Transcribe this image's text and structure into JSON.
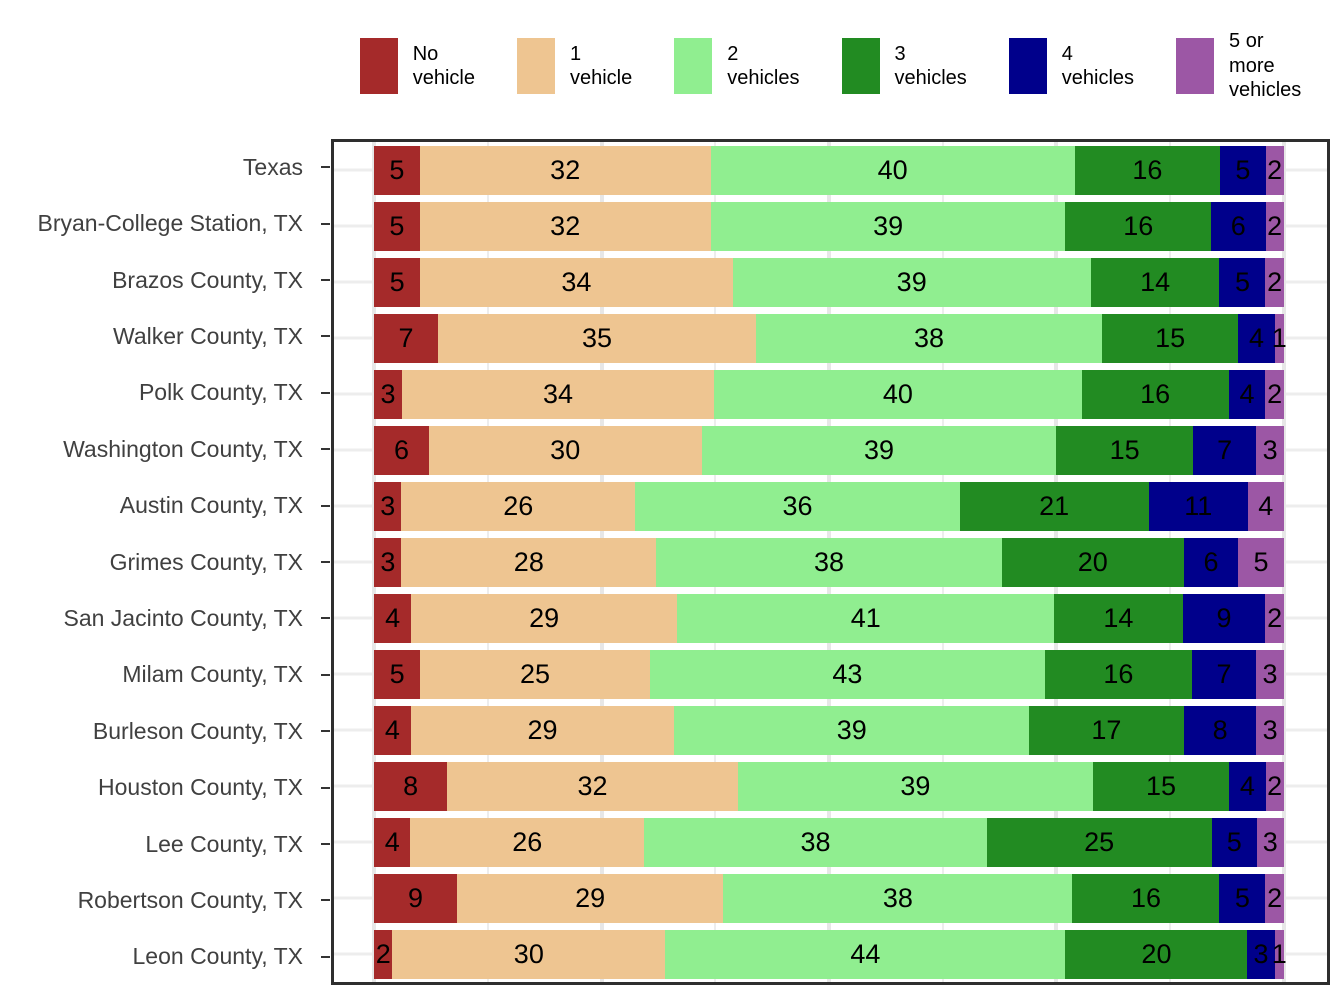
{
  "chart_data": {
    "type": "bar",
    "orientation": "horizontal-stacked",
    "unit": "percent",
    "title": "",
    "categories": [
      "Texas",
      "Bryan-College Station, TX",
      "Brazos County, TX",
      "Walker County, TX",
      "Polk County, TX",
      "Washington County, TX",
      "Austin County, TX",
      "Grimes County, TX",
      "San Jacinto County, TX",
      "Milam County, TX",
      "Burleson County, TX",
      "Houston County, TX",
      "Lee County, TX",
      "Robertson County, TX",
      "Leon County, TX"
    ],
    "series": [
      {
        "name": "No vehicle",
        "color": "#A52A2A",
        "values": [
          5,
          5,
          5,
          7,
          3,
          6,
          3,
          3,
          4,
          5,
          4,
          8,
          4,
          9,
          2
        ]
      },
      {
        "name": "1 vehicle",
        "color": "#EEC591",
        "values": [
          32,
          32,
          34,
          35,
          34,
          30,
          26,
          28,
          29,
          25,
          29,
          32,
          26,
          29,
          30
        ]
      },
      {
        "name": "2 vehicles",
        "color": "#90EE90",
        "values": [
          40,
          39,
          39,
          38,
          40,
          39,
          36,
          38,
          41,
          43,
          39,
          39,
          38,
          38,
          44
        ]
      },
      {
        "name": "3 vehicles",
        "color": "#228B22",
        "values": [
          16,
          16,
          14,
          15,
          16,
          15,
          21,
          20,
          14,
          16,
          17,
          15,
          25,
          16,
          20
        ]
      },
      {
        "name": "4 vehicles",
        "color": "#00008B",
        "values": [
          5,
          6,
          5,
          4,
          4,
          7,
          11,
          6,
          9,
          7,
          8,
          4,
          5,
          5,
          3
        ]
      },
      {
        "name": "5 or more vehicles",
        "color": "#9C57A5",
        "values": [
          2,
          2,
          2,
          1,
          2,
          3,
          4,
          5,
          2,
          3,
          3,
          2,
          3,
          2,
          1
        ]
      }
    ],
    "legend": {
      "position": "top",
      "labels": [
        "No\nvehicle",
        "1\nvehicle",
        "2\nvehicles",
        "3\nvehicles",
        "4\nvehicles",
        "5 or\nmore\nvehicles"
      ]
    },
    "x_gridlines_percent": [
      0,
      12.5,
      25,
      37.5,
      50,
      62.5,
      75,
      87.5,
      100
    ],
    "x_major_gridlines_percent": [
      0,
      25,
      50,
      75,
      100
    ],
    "value_labels_shown": true,
    "xlim": [
      0,
      100
    ],
    "grid": "vertical-light-gray",
    "axis_labels_hidden": true
  },
  "colors": {
    "background": "#FFFFFF",
    "panel_border": "#2E2E2E",
    "grid_minor": "#EDEDED",
    "grid_major": "#E7E7E7",
    "axis_text": "#404040",
    "tick": "#333333",
    "bar_label": "#000000",
    "legend_text": "#000000"
  }
}
